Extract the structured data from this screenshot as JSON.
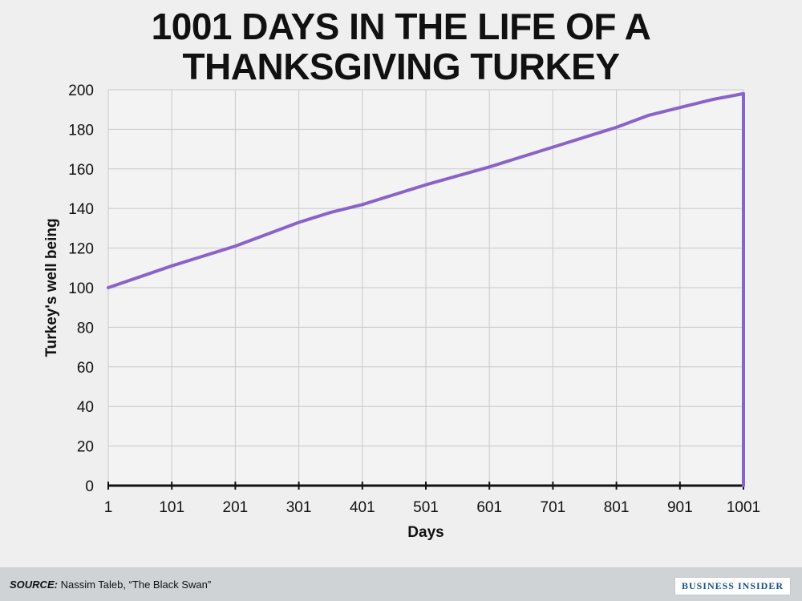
{
  "chart_data": {
    "type": "line",
    "title_lines": [
      "1001 DAYS IN THE LIFE OF A",
      "THANKSGIVING TURKEY"
    ],
    "xlabel": "Days",
    "ylabel": "Turkey's well being",
    "xlim": [
      1,
      1001
    ],
    "ylim": [
      0,
      200
    ],
    "x_ticks": [
      "1",
      "101",
      "201",
      "301",
      "401",
      "501",
      "601",
      "701",
      "801",
      "901",
      "1001"
    ],
    "y_ticks": [
      "0",
      "20",
      "40",
      "60",
      "80",
      "100",
      "120",
      "140",
      "160",
      "180",
      "200"
    ],
    "grid": true,
    "color": "#8a63c8",
    "series": [
      {
        "x": [
          1,
          101,
          201,
          301,
          351,
          401,
          501,
          601,
          701,
          801,
          851,
          901,
          951,
          1001,
          1001
        ],
        "y": [
          100,
          111,
          121,
          133,
          138,
          142,
          152,
          161,
          171,
          181,
          187,
          191,
          195,
          198,
          0
        ]
      }
    ]
  },
  "footer": {
    "source_label": "SOURCE:",
    "source_text": "Nassim Taleb, “The Black Swan”",
    "brand": "BUSINESS INSIDER"
  }
}
